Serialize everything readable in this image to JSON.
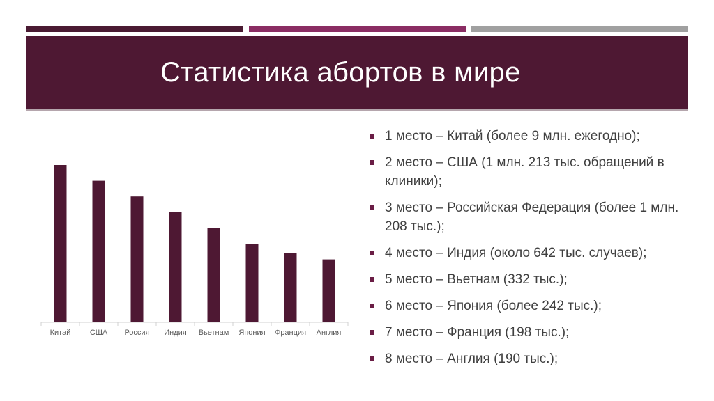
{
  "slide": {
    "title": "Статистика абортов в мире",
    "colors": {
      "title_band": "#4e1833",
      "bar": "#4e1833",
      "stripe_1": "#4a1a32",
      "stripe_2": "#8a2d63",
      "stripe_3": "#a0a0a0"
    }
  },
  "chart_data": {
    "type": "bar",
    "categories": [
      "Китай",
      "США",
      "Россия",
      "Индия",
      "Вьетнам",
      "Япония",
      "Франция",
      "Англия"
    ],
    "values": [
      10,
      9,
      8,
      7,
      6,
      5,
      4.4,
      4
    ],
    "ylim": [
      0,
      10
    ],
    "grid": false,
    "title": "",
    "xlabel": "",
    "ylabel": ""
  },
  "bullets": [
    "1 место – Китай (более 9 млн. ежегодно);",
    "2 место – США (1 млн. 213 тыс. обращений в клиники);",
    "3 место – Российская Федерация (более 1 млн. 208 тыс.);",
    "4 место – Индия (около 642 тыс. случаев);",
    "5 место – Вьетнам (332 тыс.);",
    "6 место – Япония (более 242 тыс.);",
    "7 место – Франция (198 тыс.);",
    "8 место – Англия (190 тыс.);"
  ]
}
